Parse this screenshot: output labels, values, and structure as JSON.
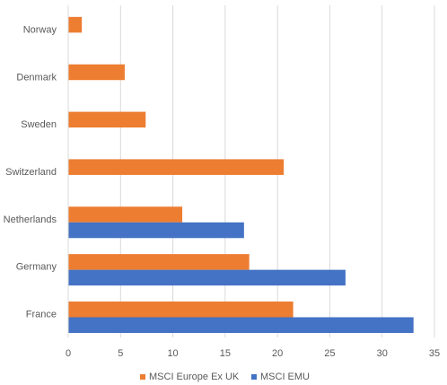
{
  "chart_data": {
    "type": "bar",
    "orientation": "horizontal",
    "categories": [
      "France",
      "Germany",
      "Netherlands",
      "Switzerland",
      "Sweden",
      "Denmark",
      "Norway"
    ],
    "series": [
      {
        "name": "MSCI Europe Ex UK",
        "color": "#ED7D31",
        "values": [
          21.5,
          17.3,
          10.9,
          20.6,
          7.4,
          5.4,
          1.3
        ]
      },
      {
        "name": "MSCI EMU",
        "color": "#4472C4",
        "values": [
          33.0,
          26.5,
          16.8,
          0,
          0,
          0,
          0
        ]
      }
    ],
    "xlim": [
      0,
      35
    ],
    "xticks": [
      "0",
      "5",
      "10",
      "15",
      "20",
      "25",
      "30",
      "35"
    ],
    "grid": true,
    "legend_position": "bottom"
  }
}
